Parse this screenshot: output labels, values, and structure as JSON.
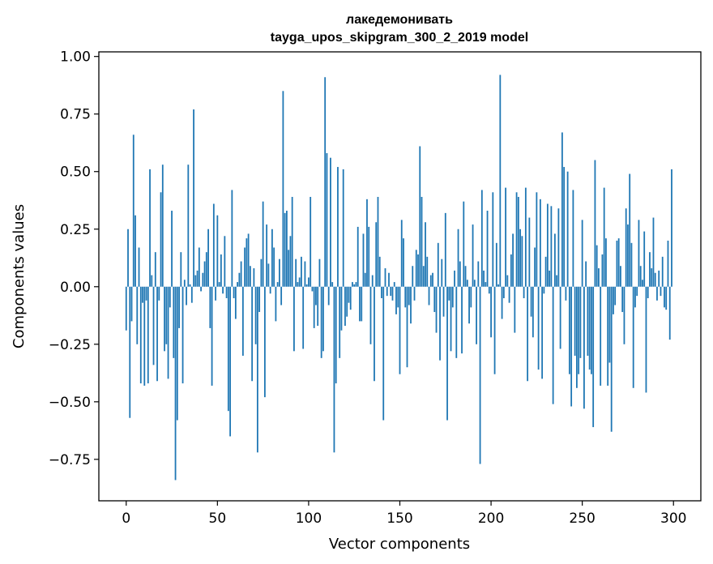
{
  "chart_data": {
    "type": "bar",
    "title_line1": "лакедемонивать",
    "title_line2": "tayga_upos_skipgram_300_2_2019 model",
    "xlabel": "Vector components",
    "ylabel": "Components values",
    "xlim": [
      -15,
      315
    ],
    "ylim": [
      -0.93,
      1.02
    ],
    "xticks": [
      0,
      50,
      100,
      150,
      200,
      250,
      300
    ],
    "xtick_labels": [
      "0",
      "50",
      "100",
      "150",
      "200",
      "250",
      "300"
    ],
    "yticks": [
      1.0,
      0.75,
      0.5,
      0.25,
      0.0,
      -0.25,
      -0.5,
      -0.75
    ],
    "ytick_labels": [
      "1.00",
      "0.75",
      "0.50",
      "0.25",
      "0.00",
      "−0.25",
      "−0.50",
      "−0.75"
    ],
    "bar_color": "#1f77b4",
    "grid": false,
    "values": [
      -0.19,
      0.25,
      -0.57,
      -0.15,
      0.66,
      0.31,
      -0.25,
      0.17,
      -0.42,
      -0.07,
      -0.43,
      -0.06,
      -0.42,
      0.51,
      0.05,
      -0.34,
      0.15,
      -0.41,
      -0.06,
      0.41,
      0.53,
      -0.28,
      -0.25,
      -0.4,
      -0.09,
      0.33,
      -0.31,
      -0.84,
      -0.58,
      -0.18,
      0.15,
      -0.42,
      0.03,
      -0.08,
      0.53,
      0.01,
      -0.07,
      0.77,
      0.05,
      0.07,
      0.17,
      -0.02,
      0.06,
      0.11,
      0.15,
      0.25,
      -0.18,
      -0.43,
      0.36,
      -0.06,
      0.31,
      0.02,
      0.14,
      -0.03,
      0.22,
      -0.05,
      -0.54,
      -0.65,
      0.42,
      -0.05,
      -0.14,
      0.02,
      0.06,
      0.11,
      -0.3,
      0.17,
      0.21,
      0.23,
      0.09,
      -0.41,
      0.08,
      -0.25,
      -0.72,
      -0.11,
      0.12,
      0.37,
      -0.48,
      0.27,
      0.1,
      -0.03,
      0.25,
      0.17,
      -0.15,
      0.02,
      0.12,
      -0.08,
      0.85,
      0.32,
      0.33,
      0.16,
      0.22,
      0.39,
      -0.28,
      0.12,
      0.02,
      0.04,
      0.13,
      -0.27,
      0.11,
      0.01,
      0.04,
      0.39,
      -0.02,
      -0.18,
      -0.08,
      -0.17,
      0.12,
      -0.31,
      -0.28,
      0.91,
      0.58,
      -0.08,
      0.56,
      0.02,
      -0.72,
      -0.42,
      0.52,
      -0.31,
      -0.19,
      0.51,
      -0.17,
      -0.13,
      -0.07,
      -0.1,
      0.02,
      0.01,
      0.02,
      0.26,
      -0.15,
      -0.15,
      0.23,
      0.06,
      0.38,
      0.26,
      -0.25,
      0.05,
      -0.41,
      0.28,
      0.39,
      0.13,
      -0.05,
      -0.58,
      0.08,
      -0.04,
      0.06,
      -0.04,
      -0.06,
      0.02,
      -0.12,
      -0.09,
      -0.38,
      0.29,
      0.21,
      -0.09,
      -0.35,
      -0.08,
      -0.16,
      0.09,
      -0.06,
      0.16,
      0.14,
      0.61,
      0.39,
      0.09,
      0.28,
      0.13,
      -0.08,
      0.05,
      0.06,
      -0.11,
      -0.2,
      0.19,
      -0.32,
      0.12,
      -0.13,
      0.32,
      -0.58,
      -0.06,
      -0.28,
      -0.09,
      0.07,
      -0.31,
      0.25,
      0.11,
      -0.29,
      0.37,
      0.09,
      0.03,
      -0.16,
      -0.09,
      0.27,
      0.03,
      -0.25,
      0.11,
      -0.77,
      0.42,
      0.07,
      0.02,
      0.33,
      -0.03,
      -0.22,
      0.41,
      -0.38,
      0.19,
      0.01,
      0.92,
      -0.14,
      -0.05,
      0.43,
      0.05,
      -0.07,
      0.14,
      0.23,
      -0.2,
      0.41,
      0.39,
      0.25,
      0.22,
      -0.05,
      0.43,
      -0.41,
      0.3,
      -0.13,
      -0.22,
      0.17,
      0.41,
      -0.36,
      0.38,
      -0.4,
      -0.03,
      0.13,
      0.36,
      0.07,
      0.35,
      -0.51,
      0.23,
      0.05,
      0.34,
      -0.27,
      0.67,
      0.52,
      -0.06,
      0.5,
      -0.38,
      -0.52,
      0.42,
      -0.3,
      -0.44,
      -0.38,
      -0.31,
      0.29,
      -0.53,
      0.11,
      -0.3,
      -0.36,
      -0.38,
      -0.61,
      0.55,
      0.18,
      0.08,
      -0.43,
      0.14,
      0.43,
      0.21,
      -0.43,
      -0.33,
      -0.63,
      -0.12,
      -0.08,
      0.2,
      0.21,
      0.09,
      -0.11,
      -0.25,
      0.34,
      0.27,
      0.49,
      0.19,
      -0.44,
      -0.09,
      -0.04,
      0.29,
      0.09,
      0.03,
      0.24,
      -0.46,
      -0.05,
      0.15,
      0.08,
      0.3,
      0.06,
      -0.06,
      0.07,
      -0.04,
      0.13,
      -0.09,
      -0.1,
      0.2,
      -0.23,
      0.51
    ]
  }
}
